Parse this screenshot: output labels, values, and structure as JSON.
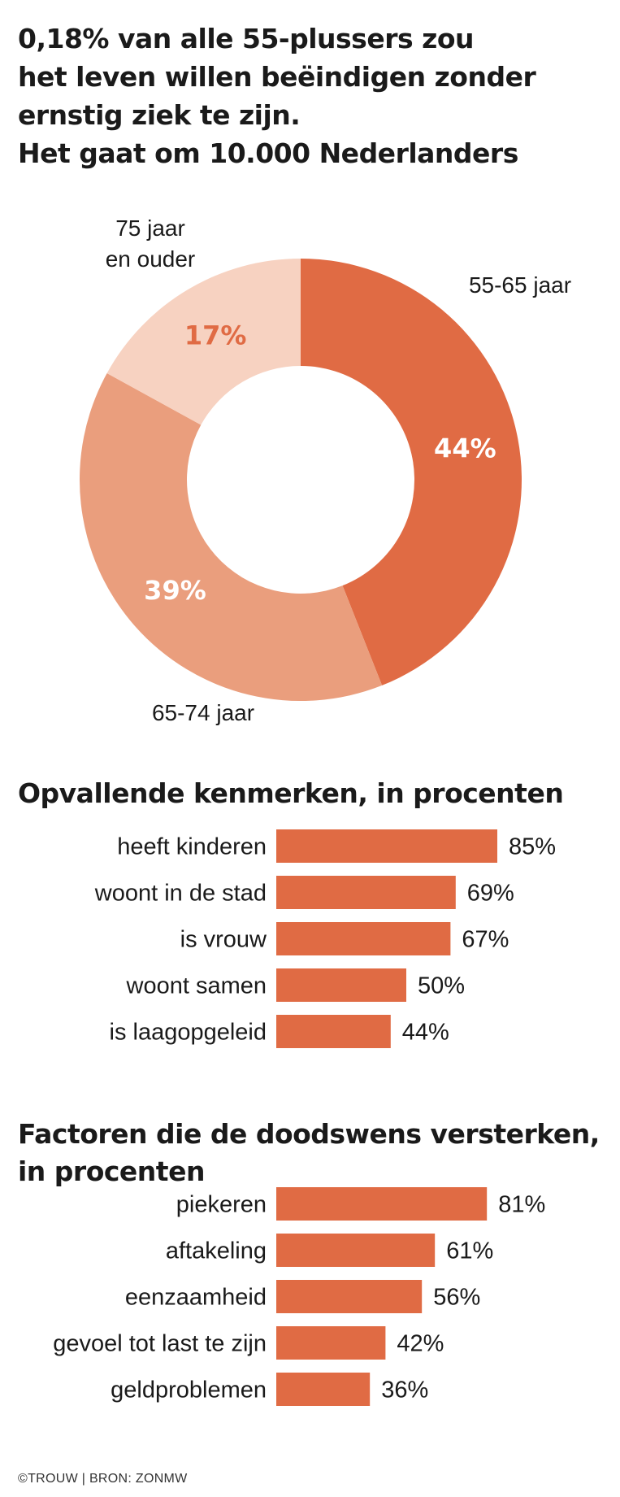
{
  "title_lines": [
    "0,18% van alle 55-plussers zou",
    "het leven willen beëindigen zonder",
    "ernstig ziek te zijn.",
    "Het gaat om 10.000 Nederlanders"
  ],
  "colors": {
    "primary": "#E06B44",
    "medium": "#EA9E7D",
    "light": "#F7D2C1",
    "label_on_light": "#E06B44",
    "label_on_dark": "#ffffff"
  },
  "chart_data": [
    {
      "type": "pie",
      "variant": "donut",
      "slices": [
        {
          "label": "55-65 jaar",
          "value": 44,
          "value_label": "44%",
          "color": "#E06B44"
        },
        {
          "label": "65-74 jaar",
          "value": 39,
          "value_label": "39%",
          "color": "#EA9E7D"
        },
        {
          "label": "75 jaar en ouder",
          "label_lines": [
            "75 jaar",
            "en ouder"
          ],
          "value": 17,
          "value_label": "17%",
          "color": "#F7D2C1"
        }
      ]
    },
    {
      "type": "bar",
      "orientation": "horizontal",
      "title": "Opvallende kenmerken, in procenten",
      "categories": [
        "heeft kinderen",
        "woont in de stad",
        "is vrouw",
        "woont samen",
        "is laagopgeleid"
      ],
      "values": [
        85,
        69,
        67,
        50,
        44
      ],
      "value_labels": [
        "85%",
        "69%",
        "67%",
        "50%",
        "44%"
      ],
      "color": "#E06B44"
    },
    {
      "type": "bar",
      "orientation": "horizontal",
      "title": "Factoren die de doodswens versterken, in procenten",
      "title_lines": [
        "Factoren die de doodswens versterken,",
        "in procenten"
      ],
      "categories": [
        "piekeren",
        "aftakeling",
        "eenzaamheid",
        "gevoel tot last te zijn",
        "geldproblemen"
      ],
      "values": [
        81,
        61,
        56,
        42,
        36
      ],
      "value_labels": [
        "81%",
        "61%",
        "56%",
        "42%",
        "36%"
      ],
      "color": "#E06B44"
    }
  ],
  "footer": "©TROUW | BRON: ZONMW"
}
